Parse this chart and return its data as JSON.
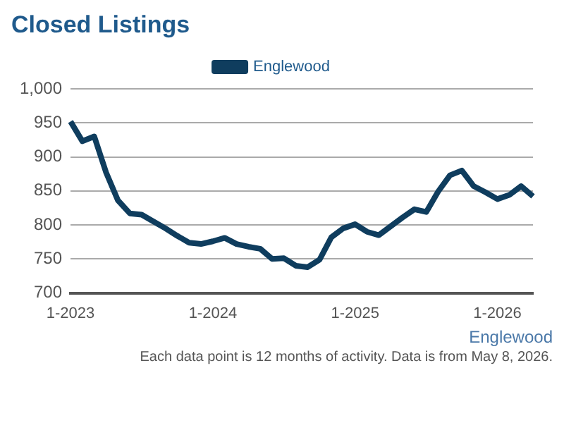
{
  "chart_data": {
    "type": "line",
    "title": "Closed Listings",
    "categories": [
      "1-2023",
      null,
      null,
      null,
      null,
      null,
      null,
      null,
      null,
      null,
      null,
      null,
      "1-2024",
      null,
      null,
      null,
      null,
      null,
      null,
      null,
      null,
      null,
      null,
      null,
      "1-2025",
      null,
      null,
      null,
      null,
      null,
      null,
      null,
      null,
      null,
      null,
      null,
      "1-2026",
      null,
      null,
      null
    ],
    "series": [
      {
        "name": "Englewood",
        "color": "#0f3d5e",
        "values": [
          952,
          923,
          930,
          877,
          836,
          817,
          815,
          805,
          795,
          784,
          774,
          772,
          776,
          781,
          772,
          768,
          765,
          750,
          751,
          740,
          738,
          749,
          782,
          795,
          801,
          790,
          785,
          798,
          811,
          823,
          819,
          849,
          873,
          880,
          857,
          848,
          838,
          844,
          857,
          842
        ]
      }
    ],
    "ylim": [
      700,
      1000
    ],
    "yticks": [
      700,
      750,
      800,
      850,
      900,
      950,
      {
        "value": 1000,
        "label": "1,000"
      }
    ],
    "grid": "y",
    "legend": "top",
    "marker": "none",
    "line_style": "solid",
    "annotations": [
      "Englewood",
      "Each data point is 12 months of activity. Data is from May 8, 2026."
    ]
  }
}
